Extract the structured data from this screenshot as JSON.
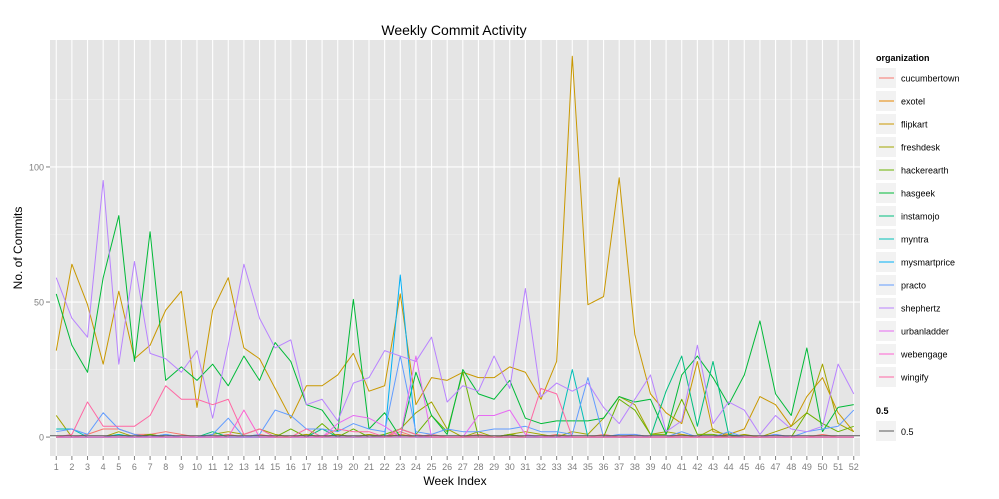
{
  "chart_data": {
    "type": "line",
    "title": "Weekly Commit Activity",
    "xlabel": "Week Index",
    "ylabel": "No. of Commits",
    "xlim": [
      0.6,
      52.4
    ],
    "ylim": [
      -7,
      147
    ],
    "y_ticks": [
      0,
      50,
      100
    ],
    "grid": true,
    "background": "#e5e5e5",
    "legend_placement": "right",
    "legend_title": "organization",
    "x": [
      1,
      2,
      3,
      4,
      5,
      6,
      7,
      8,
      9,
      10,
      11,
      12,
      13,
      14,
      15,
      16,
      17,
      18,
      19,
      20,
      21,
      22,
      23,
      24,
      25,
      26,
      27,
      28,
      29,
      30,
      31,
      32,
      33,
      34,
      35,
      36,
      37,
      38,
      39,
      40,
      41,
      42,
      43,
      44,
      45,
      46,
      47,
      48,
      49,
      50,
      51,
      52
    ],
    "series": [
      {
        "name": "cucumbertown",
        "color": "#f8766d",
        "values": [
          0,
          0,
          1,
          3,
          3,
          1,
          1,
          2,
          1,
          0,
          0,
          1,
          0,
          1,
          0,
          0,
          1,
          0,
          1,
          0,
          1,
          0,
          2,
          0,
          1,
          0,
          0,
          1,
          0,
          1,
          0,
          0,
          1,
          0,
          0,
          1,
          0,
          1,
          0,
          0,
          1,
          0,
          0,
          1,
          0,
          0,
          1,
          0,
          0,
          1,
          0,
          0
        ]
      },
      {
        "name": "exotel",
        "color": "#e58700",
        "values": [
          0,
          0,
          0,
          0,
          0,
          0,
          0,
          0,
          0,
          0,
          0,
          0,
          0,
          0,
          0,
          0,
          0,
          0,
          0,
          0,
          0,
          0,
          1,
          0,
          0,
          0,
          0,
          0,
          0,
          0,
          0,
          0,
          0,
          0,
          0,
          0,
          0,
          0,
          0,
          0,
          0,
          0,
          0,
          0,
          0,
          0,
          0,
          0,
          0,
          0,
          0,
          0
        ]
      },
      {
        "name": "flipkart",
        "color": "#c99800",
        "values": [
          32,
          64,
          49,
          27,
          54,
          29,
          34,
          47,
          54,
          11,
          47,
          59,
          33,
          29,
          18,
          7,
          19,
          19,
          23,
          31,
          17,
          19,
          53,
          12,
          22,
          21,
          24,
          22,
          22,
          26,
          24,
          14,
          28,
          141,
          49,
          52,
          96,
          38,
          16,
          9,
          5,
          28,
          2,
          1,
          3,
          15,
          12,
          4,
          15,
          22,
          9,
          2
        ]
      },
      {
        "name": "freshdesk",
        "color": "#a3a500",
        "values": [
          8,
          0,
          0,
          0,
          2,
          0,
          1,
          0,
          0,
          0,
          1,
          2,
          1,
          3,
          1,
          0,
          1,
          0,
          1,
          0,
          1,
          0,
          3,
          9,
          13,
          3,
          0,
          2,
          0,
          1,
          2,
          1,
          0,
          2,
          1,
          7,
          15,
          12,
          1,
          2,
          1,
          0,
          3,
          0,
          1,
          0,
          2,
          4,
          9,
          27,
          5,
          2
        ]
      },
      {
        "name": "hackerearth",
        "color": "#6bb100",
        "values": [
          0,
          0,
          0,
          0,
          0,
          0,
          1,
          0,
          0,
          0,
          0,
          0,
          0,
          0,
          0,
          3,
          0,
          5,
          0,
          3,
          0,
          1,
          3,
          1,
          8,
          2,
          24,
          0,
          0,
          1,
          0,
          0,
          0,
          0,
          0,
          0,
          14,
          10,
          1,
          1,
          14,
          1,
          1,
          0,
          0,
          0,
          0,
          0,
          9,
          5,
          2,
          4
        ]
      },
      {
        "name": "hasgeek",
        "color": "#00ba38",
        "values": [
          53,
          34,
          24,
          59,
          82,
          28,
          76,
          21,
          26,
          21,
          27,
          19,
          30,
          21,
          35,
          28,
          12,
          10,
          2,
          51,
          3,
          9,
          0,
          24,
          8,
          1,
          25,
          16,
          14,
          21,
          7,
          5,
          6,
          6,
          6,
          7,
          15,
          13,
          14,
          1,
          23,
          30,
          22,
          12,
          23,
          43,
          16,
          8,
          33,
          2,
          11,
          12
        ]
      },
      {
        "name": "instamojo",
        "color": "#00bf7d",
        "values": [
          0,
          0,
          0,
          0,
          0,
          0,
          0,
          0,
          0,
          0,
          2,
          0,
          0,
          0,
          0,
          0,
          0,
          3,
          0,
          0,
          0,
          0,
          0,
          0,
          0,
          0,
          0,
          0,
          0,
          0,
          0,
          0,
          0,
          0,
          0,
          0,
          0,
          0,
          0,
          17,
          30,
          4,
          28,
          1,
          0,
          0,
          0,
          0,
          0,
          0,
          0,
          0
        ]
      },
      {
        "name": "myntra",
        "color": "#00c0b8",
        "values": [
          3,
          3,
          0,
          0,
          1,
          0,
          0,
          1,
          0,
          0,
          0,
          0,
          0,
          0,
          0,
          0,
          0,
          0,
          0,
          0,
          0,
          0,
          0,
          0,
          0,
          0,
          0,
          0,
          0,
          0,
          0,
          0,
          0,
          25,
          0,
          0,
          0,
          0,
          0,
          0,
          0,
          0,
          0,
          0,
          0,
          0,
          0,
          0,
          0,
          0,
          0,
          0
        ]
      },
      {
        "name": "mysmartprice",
        "color": "#00b0f6",
        "values": [
          0,
          0,
          0,
          0,
          0,
          0,
          0,
          0,
          0,
          0,
          0,
          0,
          0,
          0,
          0,
          0,
          0,
          0,
          0,
          0,
          0,
          0,
          60,
          0,
          0,
          0,
          0,
          0,
          0,
          0,
          0,
          0,
          0,
          0,
          0,
          0,
          0,
          0,
          0,
          0,
          0,
          0,
          0,
          0,
          0,
          0,
          0,
          0,
          0,
          0,
          0,
          0
        ]
      },
      {
        "name": "practo",
        "color": "#619cff",
        "values": [
          2,
          3,
          1,
          9,
          3,
          1,
          0,
          1,
          0,
          0,
          1,
          7,
          0,
          1,
          10,
          8,
          3,
          3,
          2,
          5,
          3,
          2,
          30,
          2,
          1,
          3,
          2,
          2,
          3,
          3,
          4,
          2,
          2,
          1,
          22,
          0,
          1,
          1,
          0,
          0,
          2,
          0,
          0,
          2,
          0,
          0,
          1,
          0,
          2,
          3,
          4,
          10
        ]
      },
      {
        "name": "shephertz",
        "color": "#b983ff",
        "values": [
          59,
          44,
          37,
          95,
          27,
          65,
          31,
          29,
          24,
          32,
          7,
          34,
          64,
          44,
          33,
          36,
          12,
          14,
          6,
          20,
          22,
          32,
          30,
          28,
          37,
          13,
          19,
          17,
          30,
          18,
          55,
          15,
          20,
          17,
          20,
          11,
          5,
          14,
          23,
          2,
          6,
          34,
          5,
          13,
          10,
          1,
          8,
          3,
          2,
          4,
          27,
          16
        ]
      },
      {
        "name": "urbanladder",
        "color": "#e76bf3",
        "values": [
          0,
          0,
          0,
          0,
          0,
          0,
          0,
          0,
          0,
          0,
          0,
          0,
          0,
          0,
          0,
          0,
          0,
          0,
          5,
          8,
          7,
          4,
          0,
          30,
          0,
          0,
          0,
          8,
          8,
          10,
          1,
          0,
          0,
          0,
          0,
          0,
          0,
          0,
          0,
          0,
          0,
          0,
          0,
          0,
          0,
          0,
          0,
          0,
          0,
          0,
          0,
          0
        ]
      },
      {
        "name": "webengage",
        "color": "#fd61d1",
        "values": [
          0,
          0,
          0,
          0,
          0,
          0,
          0,
          0,
          0,
          0,
          0,
          0,
          10,
          0,
          0,
          0,
          0,
          0,
          0,
          0,
          0,
          0,
          0,
          0,
          0,
          0,
          0,
          0,
          0,
          0,
          0,
          0,
          0,
          0,
          0,
          0,
          0,
          0,
          0,
          0,
          0,
          0,
          0,
          0,
          0,
          0,
          0,
          0,
          0,
          0,
          0,
          0
        ]
      },
      {
        "name": "wingify",
        "color": "#ff67a4",
        "values": [
          0,
          1,
          13,
          4,
          4,
          4,
          8,
          19,
          14,
          14,
          12,
          14,
          1,
          3,
          0,
          0,
          3,
          0,
          3,
          2,
          2,
          0,
          3,
          1,
          0,
          0,
          0,
          0,
          0,
          0,
          0,
          18,
          16,
          0,
          0,
          0,
          0,
          0,
          0,
          0,
          0,
          0,
          0,
          0,
          0,
          0,
          0,
          0,
          0,
          0,
          0,
          0
        ]
      }
    ],
    "reference_line": {
      "name": "0.5",
      "legend_title": "0.5",
      "value": 0.5,
      "color": "#595959"
    }
  }
}
